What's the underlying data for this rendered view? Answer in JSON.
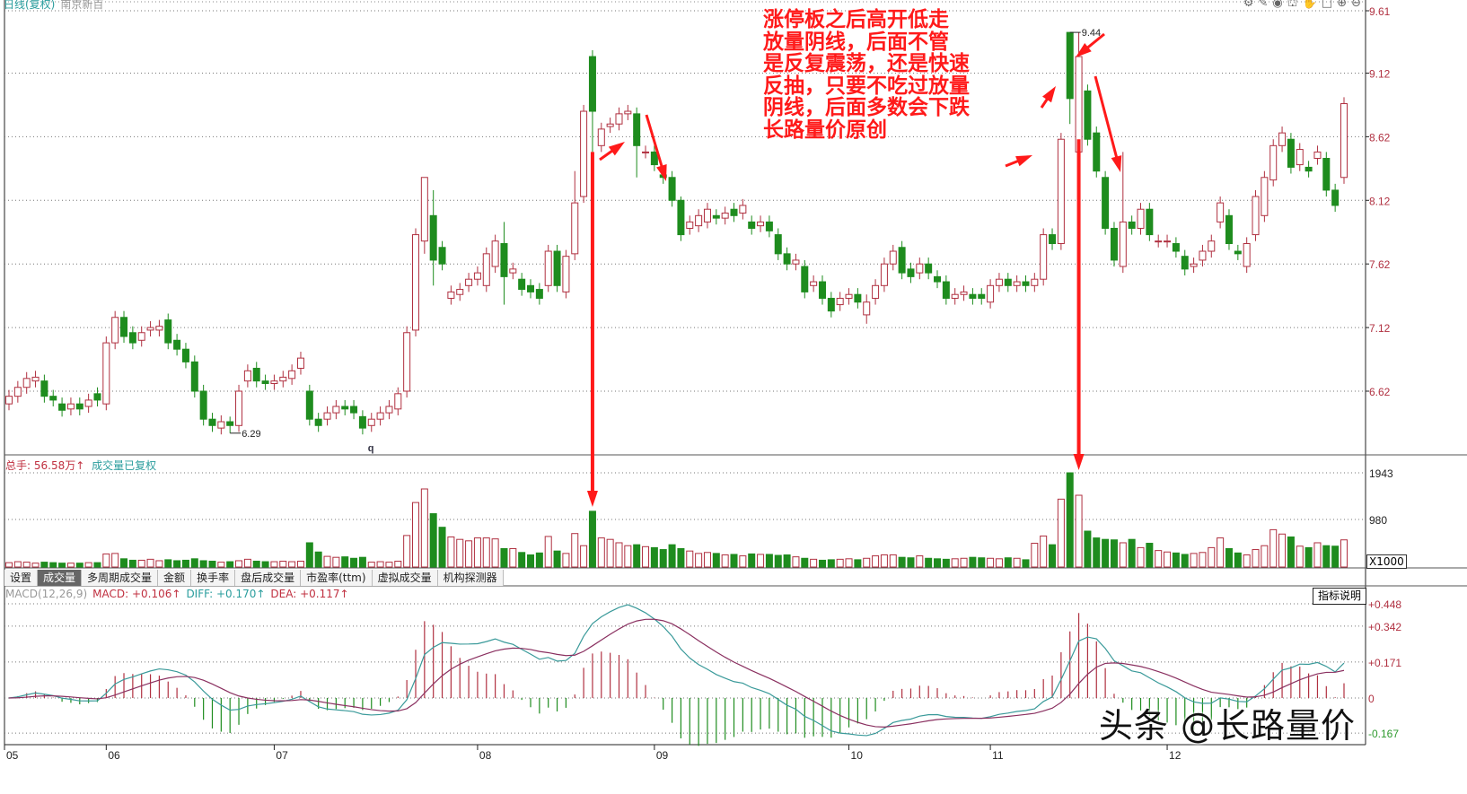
{
  "header": {
    "title": "日线(复权)",
    "stock_name": "南京新百"
  },
  "toolbar": {
    "icons": [
      "gear-icon",
      "pen-icon",
      "eye-icon",
      "basket-icon",
      "hand-icon",
      "square-icon",
      "zoom-in-icon",
      "zoom-out-icon"
    ],
    "glyphs": [
      "⚙",
      "✎",
      "◉",
      "⛫",
      "✋",
      "□",
      "⊕",
      "⊖"
    ]
  },
  "volume_header": {
    "total_label": "总手: 56.58万↑",
    "adjusted_label": "成交量已复权",
    "unit": "X1000"
  },
  "tabs": [
    "设置",
    "成交量",
    "多周期成交量",
    "金额",
    "换手率",
    "盘后成交量",
    "市盈率(ttm)",
    "虚拟成交量",
    "机构探测器"
  ],
  "active_tab": 1,
  "macd_header": {
    "name": "MACD(12,26,9)",
    "macd": "MACD: +0.106↑",
    "diff": "DIFF: +0.170↑",
    "dea": "DEA: +0.117↑"
  },
  "explain_button": "指标说明",
  "annotation_lines": [
    "涨停板之后高开低走",
    "放量阴线，后面不管",
    "是反复震荡，还是快速",
    "反抽，只要不吃过放量",
    "阴线，后面多数会下跌",
    "长路量价原创"
  ],
  "watermark": "头条 @长路量价",
  "colors": {
    "up": "#b03040",
    "down": "#1e8c1e",
    "axis_label": "#b03040",
    "neg_label": "#2e9a2e",
    "annotation": "#ff1a1a",
    "diff_line": "#3a9a9a",
    "dea_line": "#8a3060"
  },
  "chart_data": {
    "type": "candlestick",
    "price_axis": {
      "ticks": [
        9.61,
        9.12,
        8.62,
        8.12,
        7.62,
        7.12,
        6.62
      ],
      "range": [
        6.1,
        9.61
      ]
    },
    "volume_axis": {
      "ticks": [
        1943,
        980
      ],
      "range": [
        0,
        1943
      ],
      "unit": "X1000"
    },
    "macd_axis": {
      "ticks": [
        "+0.448",
        "+0.342",
        "+0.171",
        "0",
        "-0.167"
      ],
      "values": [
        0.448,
        0.342,
        0.171,
        0,
        -0.167
      ],
      "range": [
        -0.2,
        0.5
      ]
    },
    "x_labels": [
      {
        "label": "05",
        "index": 0
      },
      {
        "label": "06",
        "index": 11
      },
      {
        "label": "07",
        "index": 30
      },
      {
        "label": "08",
        "index": 53
      },
      {
        "label": "09",
        "index": 73
      },
      {
        "label": "10",
        "index": 95
      },
      {
        "label": "11",
        "index": 111
      },
      {
        "label": "12",
        "index": 131
      }
    ],
    "markers": [
      {
        "label": "6.29",
        "index": 25,
        "value": 6.29
      },
      {
        "label": "9.44",
        "index": 120,
        "value": 9.44
      },
      {
        "label": "q",
        "index": 41
      }
    ],
    "candles_open_close": [
      [
        6.52,
        6.58
      ],
      [
        6.58,
        6.65
      ],
      [
        6.65,
        6.72
      ],
      [
        6.7,
        6.73
      ],
      [
        6.7,
        6.58
      ],
      [
        6.58,
        6.55
      ],
      [
        6.52,
        6.47
      ],
      [
        6.48,
        6.52
      ],
      [
        6.52,
        6.48
      ],
      [
        6.5,
        6.55
      ],
      [
        6.6,
        6.55
      ],
      [
        6.52,
        7.0
      ],
      [
        7.0,
        7.2
      ],
      [
        7.2,
        7.05
      ],
      [
        7.08,
        7.0
      ],
      [
        7.02,
        7.08
      ],
      [
        7.1,
        7.12
      ],
      [
        7.1,
        7.13
      ],
      [
        7.18,
        7.0
      ],
      [
        7.02,
        6.95
      ],
      [
        6.95,
        6.85
      ],
      [
        6.85,
        6.62
      ],
      [
        6.62,
        6.4
      ],
      [
        6.4,
        6.35
      ],
      [
        6.33,
        6.38
      ],
      [
        6.38,
        6.35
      ],
      [
        6.35,
        6.62
      ],
      [
        6.7,
        6.78
      ],
      [
        6.8,
        6.7
      ],
      [
        6.7,
        6.68
      ],
      [
        6.68,
        6.7
      ],
      [
        6.7,
        6.73
      ],
      [
        6.72,
        6.78
      ],
      [
        6.8,
        6.88
      ],
      [
        6.62,
        6.4
      ],
      [
        6.4,
        6.35
      ],
      [
        6.4,
        6.45
      ],
      [
        6.45,
        6.5
      ],
      [
        6.5,
        6.48
      ],
      [
        6.5,
        6.45
      ],
      [
        6.42,
        6.33
      ],
      [
        6.35,
        6.4
      ],
      [
        6.4,
        6.45
      ],
      [
        6.45,
        6.5
      ],
      [
        6.48,
        6.6
      ],
      [
        6.62,
        7.08
      ],
      [
        7.1,
        7.85
      ],
      [
        7.8,
        8.3
      ],
      [
        8.0,
        7.65
      ],
      [
        7.75,
        7.62
      ],
      [
        7.35,
        7.4
      ],
      [
        7.38,
        7.42
      ],
      [
        7.45,
        7.5
      ],
      [
        7.5,
        7.55
      ],
      [
        7.45,
        7.7
      ],
      [
        7.6,
        7.8
      ],
      [
        7.78,
        7.52
      ],
      [
        7.55,
        7.58
      ],
      [
        7.5,
        7.42
      ],
      [
        7.45,
        7.4
      ],
      [
        7.42,
        7.35
      ],
      [
        7.45,
        7.72
      ],
      [
        7.72,
        7.45
      ],
      [
        7.4,
        7.68
      ],
      [
        7.7,
        8.1
      ],
      [
        8.15,
        8.82
      ],
      [
        9.25,
        8.82
      ],
      [
        8.55,
        8.68
      ],
      [
        8.7,
        8.72
      ],
      [
        8.72,
        8.8
      ],
      [
        8.8,
        8.82
      ],
      [
        8.8,
        8.55
      ],
      [
        8.5,
        8.5
      ],
      [
        8.5,
        8.4
      ],
      [
        8.32,
        8.3
      ],
      [
        8.3,
        8.12
      ],
      [
        8.12,
        7.85
      ],
      [
        7.9,
        7.95
      ],
      [
        7.92,
        8.0
      ],
      [
        7.95,
        8.05
      ],
      [
        8.0,
        7.98
      ],
      [
        7.98,
        8.02
      ],
      [
        8.05,
        8.0
      ],
      [
        8.02,
        8.08
      ],
      [
        7.95,
        7.9
      ],
      [
        7.92,
        7.95
      ],
      [
        7.95,
        7.88
      ],
      [
        7.85,
        7.7
      ],
      [
        7.7,
        7.62
      ],
      [
        7.62,
        7.65
      ],
      [
        7.6,
        7.4
      ],
      [
        7.45,
        7.48
      ],
      [
        7.48,
        7.35
      ],
      [
        7.35,
        7.25
      ],
      [
        7.3,
        7.35
      ],
      [
        7.35,
        7.38
      ],
      [
        7.38,
        7.32
      ],
      [
        7.22,
        7.32
      ],
      [
        7.35,
        7.45
      ],
      [
        7.45,
        7.62
      ],
      [
        7.62,
        7.72
      ],
      [
        7.75,
        7.55
      ],
      [
        7.58,
        7.52
      ],
      [
        7.55,
        7.62
      ],
      [
        7.62,
        7.55
      ],
      [
        7.52,
        7.48
      ],
      [
        7.48,
        7.35
      ],
      [
        7.35,
        7.38
      ],
      [
        7.38,
        7.4
      ],
      [
        7.38,
        7.35
      ],
      [
        7.38,
        7.35
      ],
      [
        7.32,
        7.45
      ],
      [
        7.45,
        7.5
      ],
      [
        7.5,
        7.45
      ],
      [
        7.45,
        7.48
      ],
      [
        7.48,
        7.45
      ],
      [
        7.45,
        7.5
      ],
      [
        7.5,
        7.85
      ],
      [
        7.85,
        7.78
      ],
      [
        7.78,
        8.6
      ],
      [
        9.44,
        8.92
      ],
      [
        8.5,
        9.25
      ],
      [
        8.98,
        8.6
      ],
      [
        8.65,
        8.35
      ],
      [
        8.3,
        7.9
      ],
      [
        7.9,
        7.65
      ],
      [
        7.6,
        7.95
      ],
      [
        7.95,
        7.9
      ],
      [
        7.9,
        8.05
      ],
      [
        8.05,
        7.85
      ],
      [
        7.8,
        7.8
      ],
      [
        7.8,
        7.8
      ],
      [
        7.78,
        7.72
      ],
      [
        7.68,
        7.58
      ],
      [
        7.6,
        7.62
      ],
      [
        7.65,
        7.72
      ],
      [
        7.72,
        7.8
      ],
      [
        7.95,
        8.1
      ],
      [
        8.0,
        7.78
      ],
      [
        7.72,
        7.7
      ],
      [
        7.6,
        7.78
      ],
      [
        7.85,
        8.15
      ],
      [
        8.0,
        8.3
      ],
      [
        8.28,
        8.55
      ],
      [
        8.55,
        8.65
      ],
      [
        8.6,
        8.38
      ],
      [
        8.4,
        8.52
      ],
      [
        8.38,
        8.35
      ],
      [
        8.45,
        8.5
      ],
      [
        8.45,
        8.2
      ],
      [
        8.2,
        8.08
      ],
      [
        8.3,
        8.88
      ]
    ],
    "high_low": {
      "25": [
        6.42,
        6.29
      ],
      "46": [
        7.9,
        7.05
      ],
      "47": [
        8.3,
        7.7
      ],
      "48": [
        8.2,
        7.45
      ],
      "56": [
        7.95,
        7.3
      ],
      "64": [
        8.35,
        7.65
      ],
      "66": [
        9.3,
        8.5
      ],
      "71": [
        8.85,
        8.3
      ],
      "76": [
        8.15,
        7.8
      ],
      "97": [
        7.38,
        7.15
      ],
      "120": [
        9.44,
        8.72
      ],
      "121": [
        9.44,
        8.6
      ],
      "126": [
        8.5,
        7.55
      ]
    },
    "volume": [
      90,
      110,
      100,
      80,
      100,
      90,
      80,
      80,
      80,
      90,
      90,
      270,
      280,
      170,
      140,
      140,
      160,
      130,
      150,
      130,
      140,
      170,
      130,
      120,
      100,
      110,
      130,
      160,
      120,
      110,
      110,
      120,
      110,
      120,
      500,
      310,
      220,
      200,
      210,
      180,
      200,
      100,
      110,
      100,
      120,
      650,
      1330,
      1610,
      1100,
      820,
      620,
      570,
      540,
      600,
      600,
      580,
      380,
      380,
      300,
      250,
      290,
      630,
      330,
      280,
      690,
      440,
      1150,
      600,
      570,
      500,
      440,
      460,
      420,
      400,
      360,
      460,
      380,
      330,
      280,
      300,
      280,
      250,
      260,
      230,
      270,
      260,
      260,
      240,
      250,
      210,
      180,
      160,
      140,
      150,
      160,
      170,
      150,
      180,
      230,
      250,
      250,
      200,
      190,
      230,
      180,
      170,
      160,
      170,
      180,
      200,
      190,
      180,
      170,
      190,
      180,
      150,
      490,
      640,
      460,
      1400,
      1943,
      1480,
      740,
      600,
      570,
      560,
      500,
      570,
      400,
      490,
      340,
      310,
      290,
      260,
      280,
      300,
      400,
      600,
      380,
      290,
      250,
      360,
      440,
      770,
      680,
      620,
      430,
      400,
      500,
      440,
      430,
      560
    ]
  }
}
